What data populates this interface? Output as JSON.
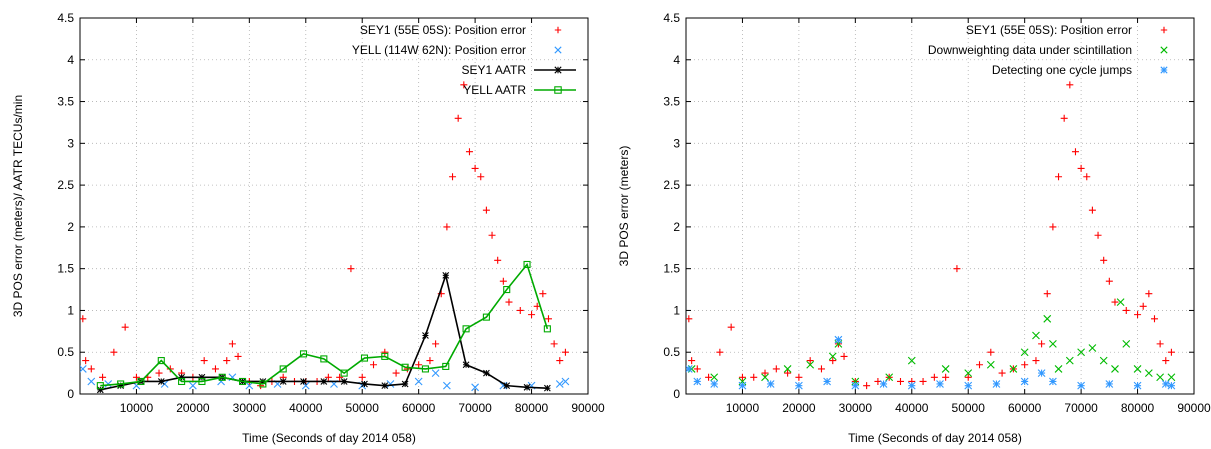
{
  "chart_data": [
    {
      "type": "scatter",
      "xlabel": "Time (Seconds of day 2014 058)",
      "ylabel": "3D POS error (meters)/ AATR TECUs/min",
      "xlim": [
        0,
        90000
      ],
      "ylim": [
        0,
        4.5
      ],
      "xticks": [
        "10000",
        "20000",
        "30000",
        "40000",
        "50000",
        "60000",
        "70000",
        "80000",
        "90000"
      ],
      "yticks": [
        "0",
        "0.5",
        "1",
        "1.5",
        "2",
        "2.5",
        "3",
        "3.5",
        "4",
        "4.5"
      ],
      "grid": true,
      "legend_position": "top-right",
      "series": [
        {
          "name": "SEY1 (55E 05S): Position error",
          "marker": "plus",
          "color": "#ff0000",
          "x": [
            500,
            1000,
            2000,
            4000,
            6000,
            8000,
            10000,
            12000,
            14000,
            16000,
            18000,
            20000,
            22000,
            24000,
            26000,
            27000,
            28000,
            30000,
            32000,
            34000,
            36000,
            38000,
            40000,
            42000,
            44000,
            46000,
            48000,
            50000,
            52000,
            54000,
            56000,
            58000,
            60000,
            62000,
            63000,
            64000,
            65000,
            66000,
            67000,
            68000,
            69000,
            70000,
            71000,
            72000,
            73000,
            74000,
            75000,
            76000,
            78000,
            80000,
            81000,
            82000,
            83000,
            84000,
            85000,
            86000
          ],
          "y": [
            0.9,
            0.4,
            0.3,
            0.2,
            0.5,
            0.8,
            0.2,
            0.2,
            0.25,
            0.3,
            0.25,
            0.2,
            0.4,
            0.3,
            0.4,
            0.6,
            0.45,
            0.15,
            0.1,
            0.15,
            0.2,
            0.15,
            0.15,
            0.15,
            0.2,
            0.2,
            1.5,
            0.2,
            0.35,
            0.5,
            0.25,
            0.3,
            0.35,
            0.4,
            0.6,
            1.2,
            2.0,
            2.6,
            3.3,
            3.7,
            2.9,
            2.7,
            2.6,
            2.2,
            1.9,
            1.6,
            1.35,
            1.1,
            1.0,
            0.95,
            1.05,
            1.2,
            0.9,
            0.6,
            0.4,
            0.5
          ]
        },
        {
          "name": "YELL (114W 62N): Position error",
          "marker": "cross",
          "color": "#3399ff",
          "x": [
            500,
            2000,
            5000,
            10000,
            15000,
            20000,
            25000,
            27000,
            30000,
            35000,
            40000,
            45000,
            50000,
            55000,
            60000,
            63000,
            65000,
            70000,
            75000,
            80000,
            85000,
            86000
          ],
          "y": [
            0.3,
            0.15,
            0.12,
            0.1,
            0.12,
            0.1,
            0.15,
            0.2,
            0.1,
            0.12,
            0.1,
            0.12,
            0.1,
            0.12,
            0.15,
            0.25,
            0.1,
            0.08,
            0.1,
            0.1,
            0.12,
            0.15
          ]
        },
        {
          "name": "SEY1 AATR",
          "marker": "star",
          "color": "#000000",
          "x": [
            3600,
            7200,
            10800,
            14400,
            18000,
            21600,
            25200,
            28800,
            32400,
            36000,
            39600,
            43200,
            46800,
            50400,
            54000,
            57600,
            61200,
            64800,
            68400,
            72000,
            75600,
            79200,
            82800
          ],
          "y": [
            0.05,
            0.1,
            0.15,
            0.15,
            0.2,
            0.2,
            0.2,
            0.15,
            0.15,
            0.15,
            0.15,
            0.15,
            0.15,
            0.12,
            0.1,
            0.12,
            0.7,
            1.42,
            0.35,
            0.25,
            0.1,
            0.08,
            0.07
          ]
        },
        {
          "name": "YELL AATR",
          "marker": "square",
          "color": "#00aa00",
          "x": [
            3600,
            7200,
            10800,
            14400,
            18000,
            21600,
            25200,
            28800,
            32400,
            36000,
            39600,
            43200,
            46800,
            50400,
            54000,
            57600,
            61200,
            64800,
            68400,
            72000,
            75600,
            79200,
            82800
          ],
          "y": [
            0.1,
            0.12,
            0.15,
            0.4,
            0.15,
            0.15,
            0.2,
            0.15,
            0.12,
            0.3,
            0.48,
            0.42,
            0.25,
            0.43,
            0.45,
            0.32,
            0.3,
            0.33,
            0.78,
            0.92,
            1.25,
            1.55,
            0.78
          ]
        }
      ]
    },
    {
      "type": "scatter",
      "xlabel": "Time (Seconds of day 2014 058)",
      "ylabel": "3D POS error (meters)",
      "xlim": [
        0,
        90000
      ],
      "ylim": [
        0,
        4.5
      ],
      "xticks": [
        "10000",
        "20000",
        "30000",
        "40000",
        "50000",
        "60000",
        "70000",
        "80000",
        "90000"
      ],
      "yticks": [
        "0",
        "0.5",
        "1",
        "1.5",
        "2",
        "2.5",
        "3",
        "3.5",
        "4",
        "4.5"
      ],
      "grid": true,
      "legend_position": "top-right",
      "series": [
        {
          "name": "SEY1 (55E 05S): Position error",
          "marker": "plus",
          "color": "#ff0000",
          "x": [
            500,
            1000,
            2000,
            4000,
            6000,
            8000,
            10000,
            12000,
            14000,
            16000,
            18000,
            20000,
            22000,
            24000,
            26000,
            27000,
            28000,
            30000,
            32000,
            34000,
            36000,
            38000,
            40000,
            42000,
            44000,
            46000,
            48000,
            50000,
            52000,
            54000,
            56000,
            58000,
            60000,
            62000,
            63000,
            64000,
            65000,
            66000,
            67000,
            68000,
            69000,
            70000,
            71000,
            72000,
            73000,
            74000,
            75000,
            76000,
            78000,
            80000,
            81000,
            82000,
            83000,
            84000,
            85000,
            86000
          ],
          "y": [
            0.9,
            0.4,
            0.3,
            0.2,
            0.5,
            0.8,
            0.2,
            0.2,
            0.25,
            0.3,
            0.25,
            0.2,
            0.4,
            0.3,
            0.4,
            0.6,
            0.45,
            0.15,
            0.1,
            0.15,
            0.2,
            0.15,
            0.15,
            0.15,
            0.2,
            0.2,
            1.5,
            0.2,
            0.35,
            0.5,
            0.25,
            0.3,
            0.35,
            0.4,
            0.6,
            1.2,
            2.0,
            2.6,
            3.3,
            3.7,
            2.9,
            2.7,
            2.6,
            2.2,
            1.9,
            1.6,
            1.35,
            1.1,
            1.0,
            0.95,
            1.05,
            1.2,
            0.9,
            0.6,
            0.4,
            0.5
          ]
        },
        {
          "name": "Downweighting data under scintillation",
          "marker": "cross",
          "color": "#00bb00",
          "x": [
            1000,
            5000,
            10000,
            14000,
            18000,
            22000,
            26000,
            27000,
            30000,
            36000,
            40000,
            46000,
            50000,
            54000,
            58000,
            60000,
            62000,
            64000,
            65000,
            66000,
            68000,
            70000,
            72000,
            74000,
            76000,
            77000,
            78000,
            80000,
            82000,
            84000,
            86000
          ],
          "y": [
            0.3,
            0.2,
            0.15,
            0.2,
            0.3,
            0.35,
            0.45,
            0.6,
            0.15,
            0.2,
            0.4,
            0.3,
            0.25,
            0.35,
            0.3,
            0.5,
            0.7,
            0.9,
            0.6,
            0.3,
            0.4,
            0.5,
            0.55,
            0.4,
            0.3,
            1.1,
            0.6,
            0.3,
            0.25,
            0.2,
            0.2
          ]
        },
        {
          "name": "Detecting one cycle jumps",
          "marker": "asterisk",
          "color": "#3399ff",
          "x": [
            500,
            2000,
            5000,
            10000,
            15000,
            20000,
            25000,
            27000,
            30000,
            35000,
            40000,
            45000,
            50000,
            55000,
            60000,
            63000,
            65000,
            70000,
            75000,
            80000,
            85000,
            86000
          ],
          "y": [
            0.3,
            0.15,
            0.12,
            0.1,
            0.12,
            0.1,
            0.15,
            0.65,
            0.1,
            0.12,
            0.1,
            0.12,
            0.1,
            0.12,
            0.15,
            0.25,
            0.15,
            0.1,
            0.12,
            0.1,
            0.12,
            0.1
          ]
        }
      ]
    }
  ]
}
